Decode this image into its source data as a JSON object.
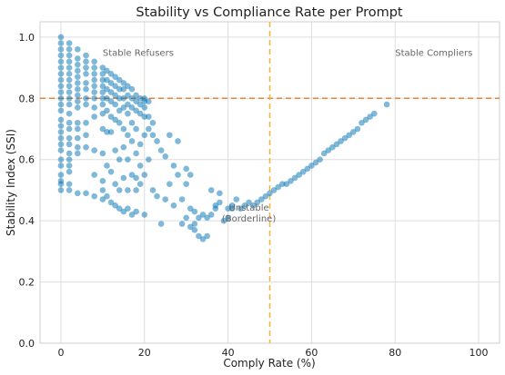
{
  "chart_data": {
    "type": "scatter",
    "title": "Stability vs Compliance Rate per Prompt",
    "xlabel": "Comply Rate (%)",
    "ylabel": "Stability Index (SSI)",
    "xlim": [
      -5,
      105
    ],
    "ylim": [
      0.0,
      1.05
    ],
    "x_ticks": [
      0,
      20,
      40,
      60,
      80,
      100
    ],
    "y_ticks": [
      0.0,
      0.2,
      0.4,
      0.6,
      0.8,
      1.0
    ],
    "x_tick_labels": [
      "0",
      "20",
      "40",
      "60",
      "80",
      "100"
    ],
    "y_tick_labels": [
      "0.0",
      "0.2",
      "0.4",
      "0.6",
      "0.8",
      "1.0"
    ],
    "grid": true,
    "point_color": "#0072b2",
    "point_alpha": 0.5,
    "threshold_lines": [
      {
        "orientation": "horizontal",
        "value": 0.8,
        "color": "#e8843a",
        "style": "dashed"
      },
      {
        "orientation": "vertical",
        "value": 50,
        "color": "#f0b43c",
        "style": "dashed"
      }
    ],
    "region_labels": [
      {
        "text": "Stable Refusers",
        "x": 10,
        "y": 0.95
      },
      {
        "text": "Stable Compliers",
        "x": 80,
        "y": 0.95
      },
      {
        "text": "Unstable",
        "x": 45,
        "y": 0.445
      },
      {
        "text": "(Borderline)",
        "x": 45,
        "y": 0.41
      }
    ],
    "points": [
      [
        0,
        1.0
      ],
      [
        0,
        0.98
      ],
      [
        0,
        0.96
      ],
      [
        0,
        0.94
      ],
      [
        0,
        0.92
      ],
      [
        0,
        0.9
      ],
      [
        0,
        0.88
      ],
      [
        0,
        0.86
      ],
      [
        0,
        0.84
      ],
      [
        0,
        0.82
      ],
      [
        0,
        0.8
      ],
      [
        0,
        0.78
      ],
      [
        0,
        0.76
      ],
      [
        0,
        0.73
      ],
      [
        0,
        0.71
      ],
      [
        0,
        0.69
      ],
      [
        0,
        0.67
      ],
      [
        0,
        0.65
      ],
      [
        0,
        0.63
      ],
      [
        0,
        0.6
      ],
      [
        0,
        0.58
      ],
      [
        0,
        0.55
      ],
      [
        0,
        0.53
      ],
      [
        0,
        0.52
      ],
      [
        0,
        0.5
      ],
      [
        2,
        0.98
      ],
      [
        2,
        0.96
      ],
      [
        2,
        0.94
      ],
      [
        2,
        0.92
      ],
      [
        2,
        0.9
      ],
      [
        2,
        0.88
      ],
      [
        2,
        0.86
      ],
      [
        2,
        0.84
      ],
      [
        2,
        0.82
      ],
      [
        2,
        0.8
      ],
      [
        2,
        0.78
      ],
      [
        2,
        0.75
      ],
      [
        2,
        0.72
      ],
      [
        2,
        0.7
      ],
      [
        2,
        0.67
      ],
      [
        2,
        0.65
      ],
      [
        2,
        0.62
      ],
      [
        2,
        0.6
      ],
      [
        2,
        0.58
      ],
      [
        2,
        0.56
      ],
      [
        2,
        0.52
      ],
      [
        2,
        0.5
      ],
      [
        4,
        0.96
      ],
      [
        4,
        0.93
      ],
      [
        4,
        0.91
      ],
      [
        4,
        0.89
      ],
      [
        4,
        0.87
      ],
      [
        4,
        0.85
      ],
      [
        4,
        0.83
      ],
      [
        4,
        0.81
      ],
      [
        4,
        0.79
      ],
      [
        4,
        0.77
      ],
      [
        4,
        0.72
      ],
      [
        4,
        0.7
      ],
      [
        4,
        0.67
      ],
      [
        4,
        0.64
      ],
      [
        4,
        0.62
      ],
      [
        4,
        0.49
      ],
      [
        6,
        0.94
      ],
      [
        6,
        0.92
      ],
      [
        6,
        0.9
      ],
      [
        6,
        0.88
      ],
      [
        6,
        0.85
      ],
      [
        6,
        0.83
      ],
      [
        6,
        0.8
      ],
      [
        6,
        0.78
      ],
      [
        6,
        0.72
      ],
      [
        6,
        0.68
      ],
      [
        6,
        0.64
      ],
      [
        6,
        0.49
      ],
      [
        8,
        0.92
      ],
      [
        8,
        0.9
      ],
      [
        8,
        0.88
      ],
      [
        8,
        0.86
      ],
      [
        8,
        0.84
      ],
      [
        8,
        0.82
      ],
      [
        8,
        0.8
      ],
      [
        8,
        0.77
      ],
      [
        8,
        0.74
      ],
      [
        8,
        0.63
      ],
      [
        8,
        0.55
      ],
      [
        8,
        0.48
      ],
      [
        10,
        0.9
      ],
      [
        10,
        0.88
      ],
      [
        10,
        0.86
      ],
      [
        10,
        0.84
      ],
      [
        10,
        0.82
      ],
      [
        10,
        0.8
      ],
      [
        10,
        0.78
      ],
      [
        10,
        0.75
      ],
      [
        10,
        0.7
      ],
      [
        10,
        0.62
      ],
      [
        10,
        0.53
      ],
      [
        10,
        0.5
      ],
      [
        10,
        0.47
      ],
      [
        11,
        0.89
      ],
      [
        11,
        0.86
      ],
      [
        11,
        0.83
      ],
      [
        11,
        0.8
      ],
      [
        11,
        0.76
      ],
      [
        11,
        0.69
      ],
      [
        11,
        0.58
      ],
      [
        11,
        0.48
      ],
      [
        12,
        0.88
      ],
      [
        12,
        0.85
      ],
      [
        12,
        0.82
      ],
      [
        12,
        0.79
      ],
      [
        12,
        0.74
      ],
      [
        12,
        0.69
      ],
      [
        12,
        0.56
      ],
      [
        12,
        0.46
      ],
      [
        13,
        0.87
      ],
      [
        13,
        0.84
      ],
      [
        13,
        0.81
      ],
      [
        13,
        0.78
      ],
      [
        13,
        0.73
      ],
      [
        13,
        0.63
      ],
      [
        13,
        0.52
      ],
      [
        13,
        0.45
      ],
      [
        14,
        0.86
      ],
      [
        14,
        0.83
      ],
      [
        14,
        0.8
      ],
      [
        14,
        0.76
      ],
      [
        14,
        0.72
      ],
      [
        14,
        0.6
      ],
      [
        14,
        0.5
      ],
      [
        14,
        0.44
      ],
      [
        15,
        0.85
      ],
      [
        15,
        0.83
      ],
      [
        15,
        0.8
      ],
      [
        15,
        0.77
      ],
      [
        15,
        0.7
      ],
      [
        15,
        0.64
      ],
      [
        15,
        0.54
      ],
      [
        15,
        0.43
      ],
      [
        16,
        0.84
      ],
      [
        16,
        0.81
      ],
      [
        16,
        0.78
      ],
      [
        16,
        0.75
      ],
      [
        16,
        0.68
      ],
      [
        16,
        0.6
      ],
      [
        16,
        0.5
      ],
      [
        16,
        0.44
      ],
      [
        17,
        0.83
      ],
      [
        17,
        0.8
      ],
      [
        17,
        0.77
      ],
      [
        17,
        0.72
      ],
      [
        17,
        0.66
      ],
      [
        17,
        0.55
      ],
      [
        17,
        0.42
      ],
      [
        18,
        0.81
      ],
      [
        18,
        0.79
      ],
      [
        18,
        0.76
      ],
      [
        18,
        0.7
      ],
      [
        18,
        0.62
      ],
      [
        18,
        0.54
      ],
      [
        18,
        0.5
      ],
      [
        18,
        0.43
      ],
      [
        19,
        0.8
      ],
      [
        19,
        0.78
      ],
      [
        19,
        0.75
      ],
      [
        19,
        0.65
      ],
      [
        19,
        0.58
      ],
      [
        19,
        0.52
      ],
      [
        20,
        0.8
      ],
      [
        20,
        0.79
      ],
      [
        20,
        0.77
      ],
      [
        20,
        0.74
      ],
      [
        20,
        0.68
      ],
      [
        20,
        0.55
      ],
      [
        20,
        0.42
      ],
      [
        21,
        0.79
      ],
      [
        21,
        0.74
      ],
      [
        21,
        0.7
      ],
      [
        21,
        0.6
      ],
      [
        22,
        0.72
      ],
      [
        22,
        0.68
      ],
      [
        22,
        0.5
      ],
      [
        23,
        0.66
      ],
      [
        23,
        0.48
      ],
      [
        24,
        0.63
      ],
      [
        24,
        0.39
      ],
      [
        25,
        0.61
      ],
      [
        25,
        0.47
      ],
      [
        26,
        0.68
      ],
      [
        26,
        0.52
      ],
      [
        27,
        0.58
      ],
      [
        27,
        0.45
      ],
      [
        28,
        0.66
      ],
      [
        28,
        0.55
      ],
      [
        29,
        0.47
      ],
      [
        29,
        0.39
      ],
      [
        30,
        0.57
      ],
      [
        30,
        0.52
      ],
      [
        30,
        0.41
      ],
      [
        31,
        0.55
      ],
      [
        31,
        0.44
      ],
      [
        31,
        0.38
      ],
      [
        32,
        0.43
      ],
      [
        32,
        0.39
      ],
      [
        32,
        0.37
      ],
      [
        33,
        0.41
      ],
      [
        33,
        0.35
      ],
      [
        34,
        0.42
      ],
      [
        34,
        0.34
      ],
      [
        35,
        0.41
      ],
      [
        35,
        0.35
      ],
      [
        36,
        0.42
      ],
      [
        36,
        0.5
      ],
      [
        37,
        0.44
      ],
      [
        37,
        0.45
      ],
      [
        38,
        0.46
      ],
      [
        38,
        0.49
      ],
      [
        39,
        0.4
      ],
      [
        40,
        0.44
      ],
      [
        40,
        0.41
      ],
      [
        41,
        0.44
      ],
      [
        41,
        0.45
      ],
      [
        42,
        0.47
      ],
      [
        43,
        0.44
      ],
      [
        44,
        0.45
      ],
      [
        45,
        0.46
      ],
      [
        46,
        0.45
      ],
      [
        47,
        0.46
      ],
      [
        48,
        0.47
      ],
      [
        49,
        0.48
      ],
      [
        50,
        0.49
      ],
      [
        51,
        0.5
      ],
      [
        52,
        0.51
      ],
      [
        53,
        0.52
      ],
      [
        54,
        0.52
      ],
      [
        55,
        0.53
      ],
      [
        56,
        0.54
      ],
      [
        57,
        0.55
      ],
      [
        58,
        0.56
      ],
      [
        59,
        0.57
      ],
      [
        60,
        0.58
      ],
      [
        61,
        0.59
      ],
      [
        62,
        0.6
      ],
      [
        63,
        0.62
      ],
      [
        64,
        0.63
      ],
      [
        65,
        0.64
      ],
      [
        66,
        0.65
      ],
      [
        67,
        0.66
      ],
      [
        68,
        0.67
      ],
      [
        69,
        0.68
      ],
      [
        70,
        0.69
      ],
      [
        71,
        0.7
      ],
      [
        72,
        0.72
      ],
      [
        73,
        0.73
      ],
      [
        74,
        0.74
      ],
      [
        75,
        0.75
      ],
      [
        78,
        0.78
      ]
    ]
  }
}
